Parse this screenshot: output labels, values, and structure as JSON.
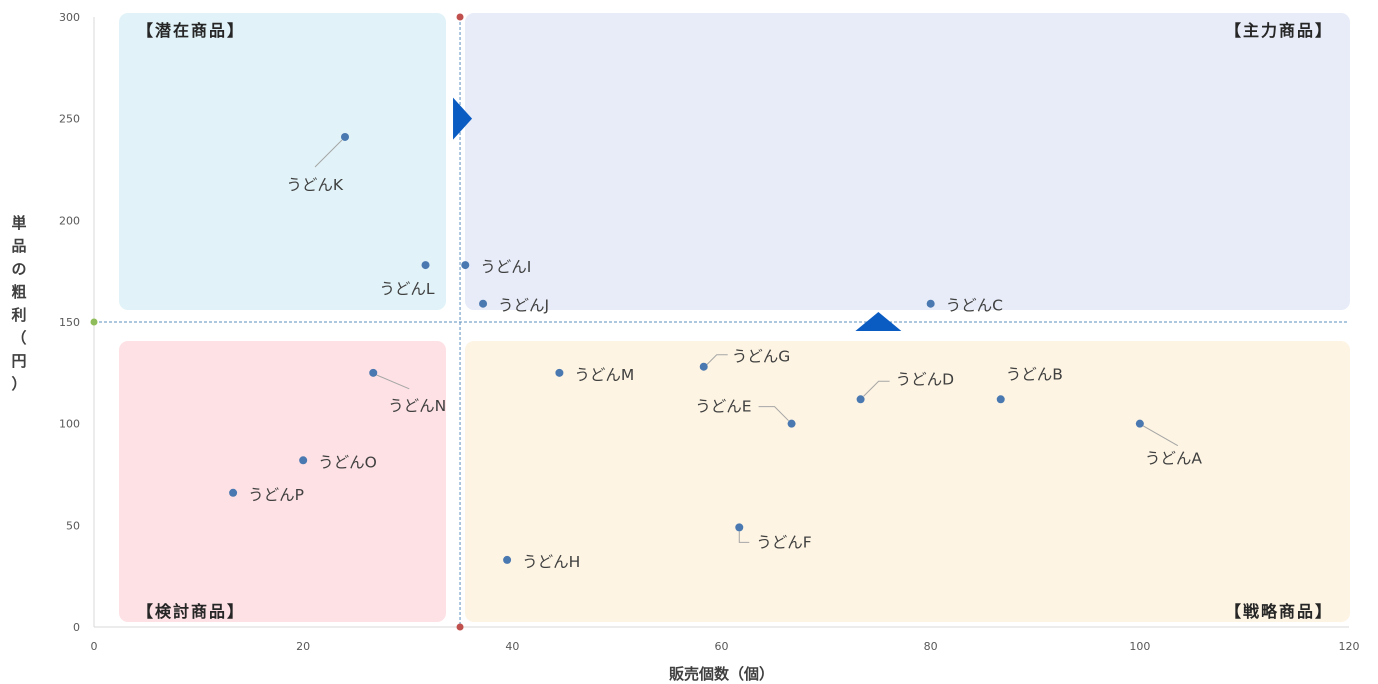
{
  "chart_data": {
    "type": "scatter",
    "xlabel": "販売個数（個）",
    "ylabel": "単品の粗利（円）",
    "xlim": [
      0,
      120
    ],
    "ylim": [
      0,
      300
    ],
    "xticks": [
      0,
      20,
      40,
      60,
      80,
      100,
      120
    ],
    "yticks": [
      0,
      50,
      100,
      150,
      200,
      250,
      300
    ],
    "grid": false,
    "threshold_x": 35,
    "threshold_y": 150,
    "quadrants": [
      {
        "id": "latent",
        "label": "【潜在商品】",
        "position": "top-left",
        "color": "#e1f3f8"
      },
      {
        "id": "main",
        "label": "【主力商品】",
        "position": "top-right",
        "color": "#e7ecf8"
      },
      {
        "id": "review",
        "label": "【検討商品】",
        "position": "bottom-left",
        "color": "#fde1e5"
      },
      {
        "id": "strategic",
        "label": "【戦略商品】",
        "position": "bottom-right",
        "color": "#fdf4e3"
      }
    ],
    "points": [
      {
        "name": "うどんA",
        "x": 100,
        "y": 100
      },
      {
        "name": "うどんB",
        "x": 86.7,
        "y": 112
      },
      {
        "name": "うどんC",
        "x": 80,
        "y": 159
      },
      {
        "name": "うどんD",
        "x": 73.3,
        "y": 112
      },
      {
        "name": "うどんE",
        "x": 66.7,
        "y": 100
      },
      {
        "name": "うどんF",
        "x": 61.7,
        "y": 49
      },
      {
        "name": "うどんG",
        "x": 58.3,
        "y": 128
      },
      {
        "name": "うどんH",
        "x": 39.5,
        "y": 33
      },
      {
        "name": "うどんI",
        "x": 35.5,
        "y": 178
      },
      {
        "name": "うどんJ",
        "x": 37.2,
        "y": 159
      },
      {
        "name": "うどんK",
        "x": 24,
        "y": 241
      },
      {
        "name": "うどんL",
        "x": 31.7,
        "y": 178
      },
      {
        "name": "うどんM",
        "x": 44.5,
        "y": 125
      },
      {
        "name": "うどんN",
        "x": 26.7,
        "y": 125
      },
      {
        "name": "うどんO",
        "x": 20,
        "y": 82
      },
      {
        "name": "うどんP",
        "x": 13.3,
        "y": 66
      }
    ],
    "colors": {
      "point": "#4a78b0",
      "threshold_line": "#5b8fbf",
      "threshold_marker": "#c0504d",
      "origin_marker": "#8fbc5a",
      "arrow": "#0a5cc2",
      "leader": "#a6a6a6"
    }
  }
}
